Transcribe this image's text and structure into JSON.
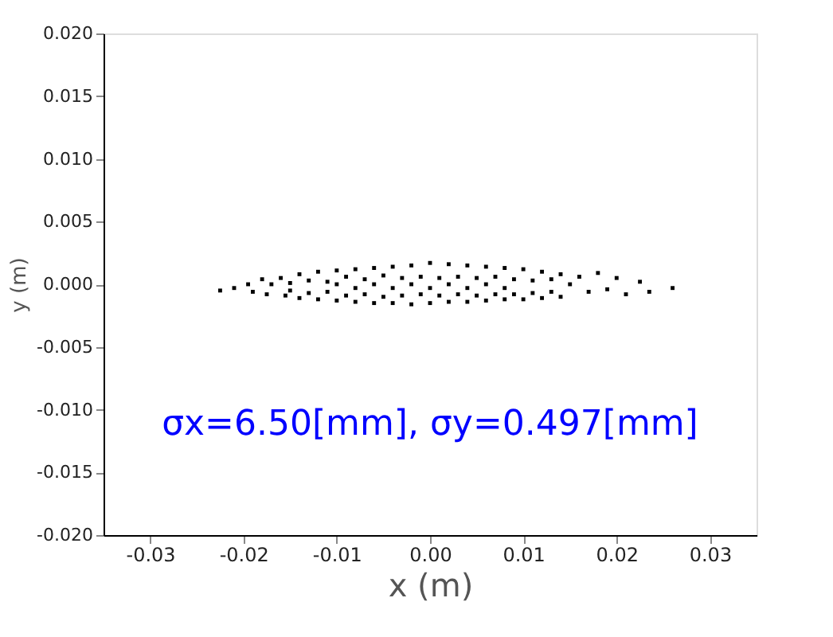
{
  "chart_data": {
    "type": "scatter",
    "xlabel": "x  (m)",
    "ylabel": "y  (m)",
    "xlim": [
      -0.035,
      0.035
    ],
    "xticks": [
      {
        "value": -0.03,
        "label": "-0.03"
      },
      {
        "value": -0.02,
        "label": "-0.02"
      },
      {
        "value": -0.01,
        "label": "-0.01"
      },
      {
        "value": 0.0,
        "label": "0.00"
      },
      {
        "value": 0.01,
        "label": "0.01"
      },
      {
        "value": 0.02,
        "label": "0.02"
      },
      {
        "value": 0.03,
        "label": "0.03"
      }
    ],
    "ylim": [
      -0.02,
      0.02
    ],
    "yticks": [
      {
        "value": -0.02,
        "label": "-0.020"
      },
      {
        "value": -0.015,
        "label": "-0.015"
      },
      {
        "value": -0.01,
        "label": "-0.010"
      },
      {
        "value": -0.005,
        "label": "-0.005"
      },
      {
        "value": 0.0,
        "label": "0.000"
      },
      {
        "value": 0.005,
        "label": "0.005"
      },
      {
        "value": 0.01,
        "label": "0.010"
      },
      {
        "value": 0.015,
        "label": "0.015"
      },
      {
        "value": 0.02,
        "label": "0.020"
      }
    ],
    "grid": false,
    "marker": "square",
    "annotations": [
      "σx=6.50[mm], σy=0.497[mm]"
    ],
    "series": [
      {
        "color": "#000000",
        "x": [
          -0.0225,
          -0.021,
          -0.0195,
          -0.019,
          -0.018,
          -0.0175,
          -0.017,
          -0.016,
          -0.0155,
          -0.015,
          -0.015,
          -0.014,
          -0.014,
          -0.013,
          -0.013,
          -0.012,
          -0.012,
          -0.011,
          -0.011,
          -0.01,
          -0.01,
          -0.01,
          -0.009,
          -0.009,
          -0.008,
          -0.008,
          -0.008,
          -0.007,
          -0.007,
          -0.006,
          -0.006,
          -0.006,
          -0.005,
          -0.005,
          -0.004,
          -0.004,
          -0.004,
          -0.003,
          -0.003,
          -0.002,
          -0.002,
          -0.002,
          -0.001,
          -0.001,
          0.0,
          0.0,
          0.0,
          0.001,
          0.001,
          0.002,
          0.002,
          0.002,
          0.003,
          0.003,
          0.004,
          0.004,
          0.004,
          0.005,
          0.005,
          0.006,
          0.006,
          0.006,
          0.007,
          0.007,
          0.008,
          0.008,
          0.008,
          0.009,
          0.009,
          0.01,
          0.01,
          0.011,
          0.011,
          0.012,
          0.012,
          0.013,
          0.013,
          0.014,
          0.014,
          0.015,
          0.016,
          0.017,
          0.018,
          0.019,
          0.02,
          0.021,
          0.0225,
          0.0235,
          0.026
        ],
        "values": [
          -0.0005,
          -0.0003,
          0.0,
          -0.0006,
          0.0004,
          -0.0008,
          0.0,
          0.0005,
          -0.0009,
          0.0001,
          -0.0005,
          0.0008,
          -0.0011,
          0.0003,
          -0.0007,
          0.001,
          -0.0012,
          0.0002,
          -0.0006,
          0.0011,
          -0.0013,
          0.0,
          0.0006,
          -0.0009,
          0.0012,
          -0.0014,
          -0.0003,
          0.0004,
          -0.0008,
          0.0013,
          -0.0015,
          0.0,
          0.0007,
          -0.001,
          0.0014,
          -0.0015,
          -0.0003,
          0.0005,
          -0.0009,
          0.0015,
          -0.0016,
          0.0,
          0.0006,
          -0.0008,
          0.0017,
          -0.0015,
          -0.0003,
          0.0005,
          -0.0009,
          0.0016,
          -0.0014,
          0.0,
          0.0006,
          -0.0008,
          0.0015,
          -0.0014,
          -0.0003,
          0.0005,
          -0.0009,
          0.0014,
          -0.0013,
          0.0,
          0.0006,
          -0.0008,
          0.0013,
          -0.0012,
          -0.0003,
          0.0004,
          -0.0008,
          0.0012,
          -0.0012,
          0.0003,
          -0.0007,
          0.001,
          -0.0011,
          0.0004,
          -0.0006,
          0.0008,
          -0.001,
          0.0,
          0.0006,
          -0.0006,
          0.0009,
          -0.0004,
          0.0005,
          -0.0008,
          0.0002,
          -0.0006,
          -0.0003
        ]
      }
    ]
  }
}
